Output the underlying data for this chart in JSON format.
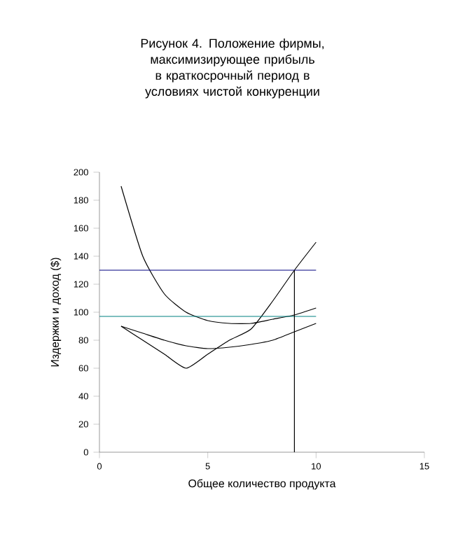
{
  "chart_data": {
    "type": "line",
    "title": "Рисунок 4. Положение фирмы, максимизирующее прибыль в краткосрочный период в условиях чистой конкуренции",
    "xlabel": "Общее количество продукта",
    "ylabel": "Издержки и доход ($)",
    "xlim": [
      0,
      15
    ],
    "ylim": [
      0,
      200
    ],
    "xticks": [
      0,
      5,
      10,
      15
    ],
    "yticks": [
      0,
      20,
      40,
      60,
      80,
      100,
      120,
      140,
      160,
      180,
      200
    ],
    "marker": "none",
    "series": [
      {
        "color": "#000000",
        "x": [
          1,
          2,
          3,
          4,
          5,
          6,
          7,
          8,
          9,
          10
        ],
        "values": [
          190,
          140,
          113,
          100,
          94,
          92,
          92,
          95,
          98,
          103
        ]
      },
      {
        "color": "#000000",
        "x": [
          1,
          2,
          3,
          4,
          5,
          6,
          7,
          8,
          9,
          10
        ],
        "values": [
          90,
          80,
          70,
          60,
          70,
          80,
          88,
          108,
          130,
          150
        ]
      },
      {
        "color": "#000000",
        "x": [
          1,
          2,
          3,
          4,
          5,
          6,
          7,
          8,
          9,
          10
        ],
        "values": [
          90,
          85,
          80,
          76,
          74,
          75,
          77,
          80,
          86,
          92
        ]
      },
      {
        "color": "#000080",
        "x": [
          0,
          10
        ],
        "values": [
          130,
          130
        ]
      },
      {
        "color": "#008080",
        "x": [
          0,
          10
        ],
        "values": [
          97,
          97
        ]
      },
      {
        "color": "#000000",
        "x": [
          9,
          9
        ],
        "values": [
          0,
          130
        ]
      }
    ]
  }
}
